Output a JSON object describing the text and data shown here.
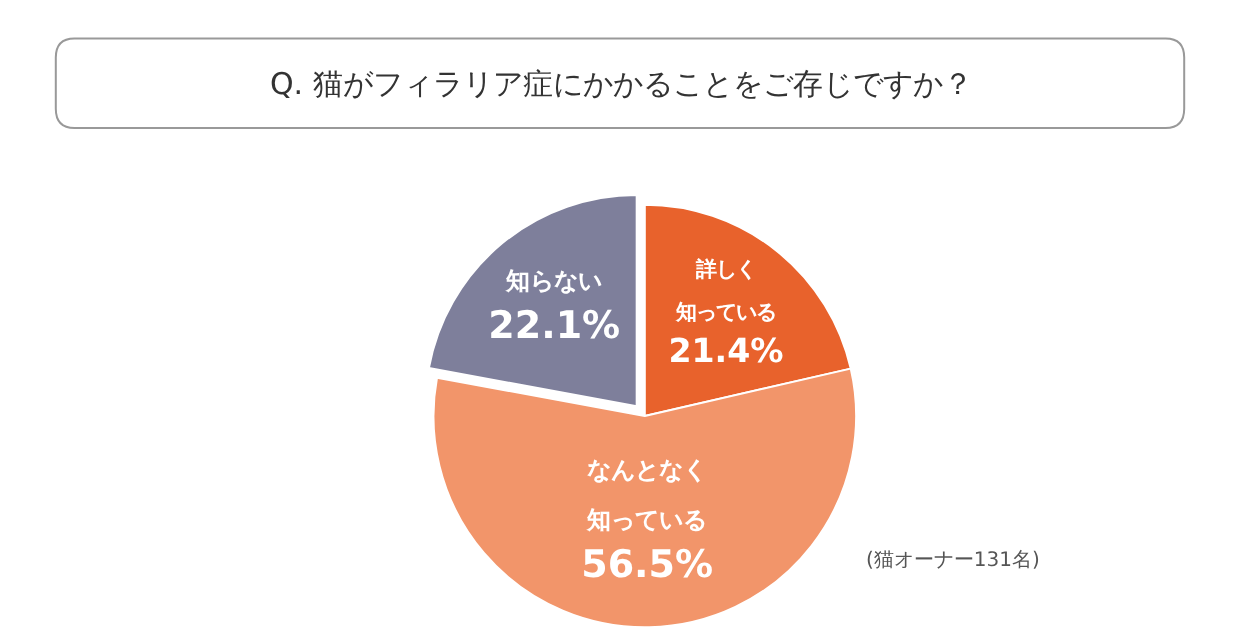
{
  "chart_data": {
    "type": "pie",
    "title": "Q. 猫がフィラリア症にかかることをご存じですか？",
    "categories": [
      "詳しく知っている",
      "なんとなく知っている",
      "知らない"
    ],
    "values": [
      21.4,
      56.5,
      22.1
    ],
    "value_labels": [
      "21.4%",
      "56.5%",
      "22.1%"
    ],
    "colors": [
      "#e8622c",
      "#f2956a",
      "#7e7f9b"
    ],
    "legend": false,
    "annotations": [
      "(猫オーナー131名)"
    ]
  }
}
